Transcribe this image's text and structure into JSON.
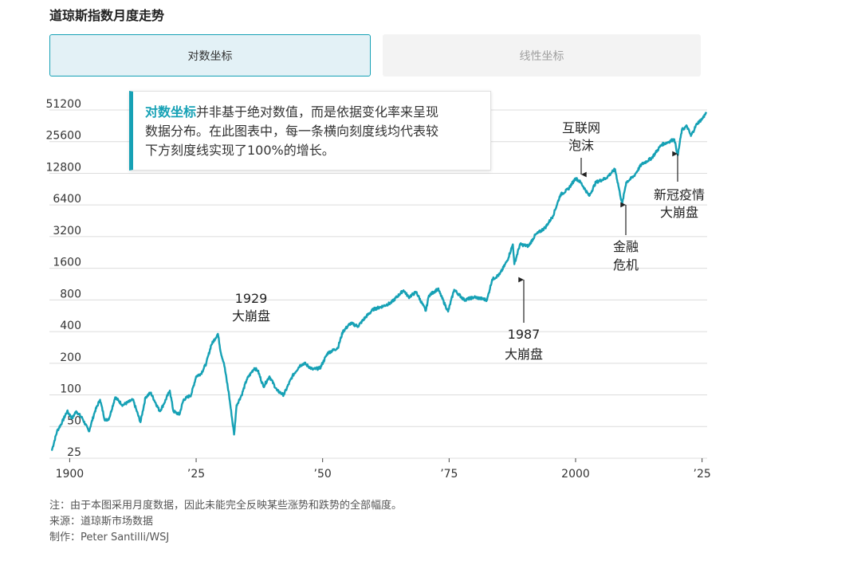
{
  "title": "道琼斯指数月度走势",
  "toggles": {
    "log_label": "对数坐标",
    "linear_label": "线性坐标"
  },
  "note": {
    "highlight": "对数坐标",
    "text_line1": "并非基于绝对数值，而是依据变化率来呈现",
    "text_line2": "数据分布。在此图表中，每一条横向刻度线均代表较",
    "text_line3": "下方刻度线实现了100%的增长。"
  },
  "footer": {
    "note": "注：由于本图采用月度数据，因此未能完全反映某些涨势和跌势的全部幅度。",
    "source": "来源：道琼斯市场数据",
    "credit": "制作：Peter Santilli/WSJ"
  },
  "colors": {
    "line": "#16a1b5",
    "grid": "#dcdcdc",
    "accent": "#16a1b5"
  },
  "chart_data": {
    "type": "line",
    "y_scale": "log2",
    "ylim": [
      25,
      51200
    ],
    "xlim": [
      1896,
      2026
    ],
    "y_ticks": [
      25,
      50,
      100,
      200,
      400,
      800,
      1600,
      3200,
      6400,
      12800,
      25600,
      51200
    ],
    "y_tick_labels": [
      "25",
      "50",
      "100",
      "200",
      "400",
      "800",
      "1600",
      "3200",
      "6400",
      "12800",
      "25600",
      "51200"
    ],
    "x_ticks": [
      1900,
      1925,
      1950,
      1975,
      2000,
      2025
    ],
    "x_tick_labels": [
      "1900",
      "’25",
      "’50",
      "’75",
      "2000",
      "’25"
    ],
    "series": [
      {
        "x": [
          1896.5,
          1897.5,
          1898.5,
          1899.5,
          1900.5,
          1901.3,
          1902.5,
          1903.8,
          1905.0,
          1906.0,
          1907.0,
          1907.8,
          1909.0,
          1910.5,
          1911.5,
          1912.5,
          1914.0,
          1915.0,
          1916.0,
          1917.8,
          1918.5,
          1919.8,
          1920.5,
          1921.7,
          1922.5,
          1924.0,
          1925.0,
          1926.0,
          1927.0,
          1928.0,
          1929.3,
          1929.9,
          1930.5,
          1931.5,
          1932.5,
          1933.0,
          1934.0,
          1935.0,
          1936.5,
          1937.2,
          1938.3,
          1939.5,
          1941.0,
          1942.3,
          1944.0,
          1945.5,
          1946.4,
          1948.0,
          1949.5,
          1951.0,
          1953.0,
          1954.0,
          1955.5,
          1957.0,
          1958.5,
          1960.0,
          1962.0,
          1963.5,
          1966.0,
          1967.0,
          1968.5,
          1970.4,
          1971.0,
          1972.8,
          1974.8,
          1976.0,
          1978.0,
          1980.0,
          1982.5,
          1983.5,
          1985.0,
          1986.5,
          1987.6,
          1987.9,
          1989.0,
          1990.7,
          1992.0,
          1994.0,
          1995.5,
          1997.0,
          1998.5,
          2000.0,
          2001.0,
          2002.7,
          2004.0,
          2006.0,
          2007.8,
          2009.2,
          2010.0,
          2011.5,
          2013.0,
          2015.0,
          2017.0,
          2018.0,
          2019.5,
          2020.2,
          2021.0,
          2022.0,
          2022.8,
          2024.0,
          2025.0,
          2025.8
        ],
        "y": [
          30,
          45,
          55,
          70,
          60,
          70,
          60,
          45,
          70,
          90,
          57,
          60,
          95,
          80,
          85,
          90,
          55,
          95,
          105,
          70,
          80,
          110,
          70,
          65,
          90,
          100,
          150,
          160,
          200,
          300,
          381,
          250,
          200,
          100,
          42,
          80,
          100,
          140,
          180,
          170,
          120,
          150,
          110,
          100,
          150,
          190,
          200,
          175,
          180,
          250,
          280,
          400,
          480,
          450,
          550,
          650,
          700,
          750,
          990,
          850,
          950,
          630,
          880,
          1020,
          620,
          1000,
          800,
          850,
          800,
          1250,
          1400,
          1900,
          2700,
          1750,
          2700,
          2600,
          3300,
          3900,
          5000,
          8000,
          9000,
          11500,
          10500,
          7800,
          10500,
          11500,
          14000,
          6500,
          10500,
          12000,
          15500,
          17800,
          24000,
          25000,
          27000,
          19000,
          33000,
          36000,
          29000,
          38000,
          42000,
          48000
        ]
      }
    ],
    "annotations": [
      {
        "text_line1": "1929",
        "text_line2": "大崩盘",
        "x": 1929.8,
        "y": 381
      },
      {
        "text_line1": "1987",
        "text_line2": "大崩盘",
        "x": 1987.9,
        "y": 1700
      },
      {
        "text_line1": "互联网",
        "text_line2": "泡沫",
        "x": 2000.0,
        "y": 12000
      },
      {
        "text_line1": "金融",
        "text_line2": "危机",
        "x": 2009.2,
        "y": 6500
      },
      {
        "text_line1": "新冠疫情",
        "text_line2": "大崩盘",
        "x": 2020.2,
        "y": 19000
      }
    ]
  }
}
